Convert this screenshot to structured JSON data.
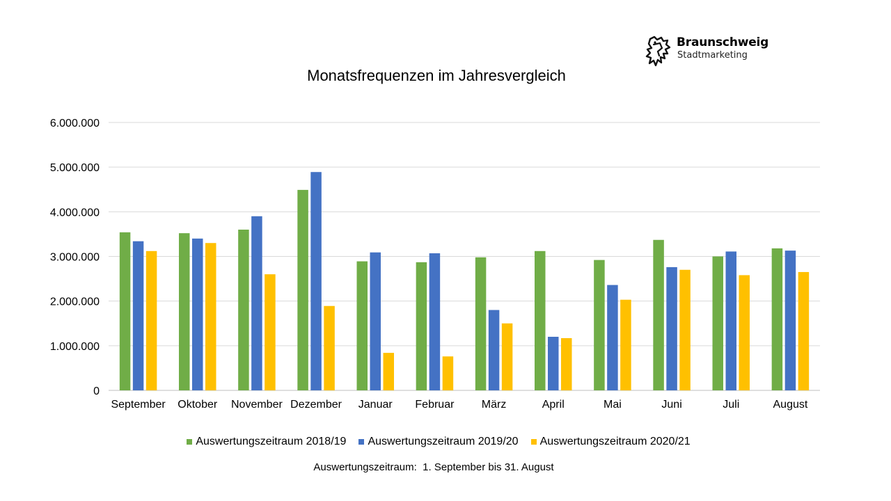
{
  "logo": {
    "name": "Braunschweig",
    "subtitle": "Stadtmarketing"
  },
  "footnote": "Auswertungszeitraum:  1. September bis 31. August",
  "chart_data": {
    "type": "bar",
    "title": "Monatsfrequenzen im Jahresvergleich",
    "xlabel": "",
    "ylabel": "",
    "ylim": [
      0,
      6000000
    ],
    "yticks": [
      0,
      1000000,
      2000000,
      3000000,
      4000000,
      5000000,
      6000000
    ],
    "ytick_labels": [
      "0",
      "1.000.000",
      "2.000.000",
      "3.000.000",
      "4.000.000",
      "5.000.000",
      "6.000.000"
    ],
    "grid": true,
    "legend_position": "bottom",
    "categories": [
      "September",
      "Oktober",
      "November",
      "Dezember",
      "Januar",
      "Februar",
      "März",
      "April",
      "Mai",
      "Juni",
      "Juli",
      "August"
    ],
    "series": [
      {
        "name": "Auswertungszeitraum 2018/19",
        "color": "#70ad47",
        "values": [
          3540000,
          3520000,
          3600000,
          4490000,
          2890000,
          2870000,
          2980000,
          3120000,
          2920000,
          3370000,
          3000000,
          3180000
        ]
      },
      {
        "name": "Auswertungszeitraum 2019/20",
        "color": "#4472c4",
        "values": [
          3340000,
          3400000,
          3900000,
          4890000,
          3090000,
          3070000,
          1800000,
          1200000,
          2360000,
          2760000,
          3110000,
          3130000
        ]
      },
      {
        "name": "Auswertungszeitraum 2020/21",
        "color": "#ffc000",
        "values": [
          3120000,
          3300000,
          2600000,
          1890000,
          840000,
          760000,
          1500000,
          1170000,
          2030000,
          2700000,
          2580000,
          2650000
        ]
      }
    ]
  }
}
